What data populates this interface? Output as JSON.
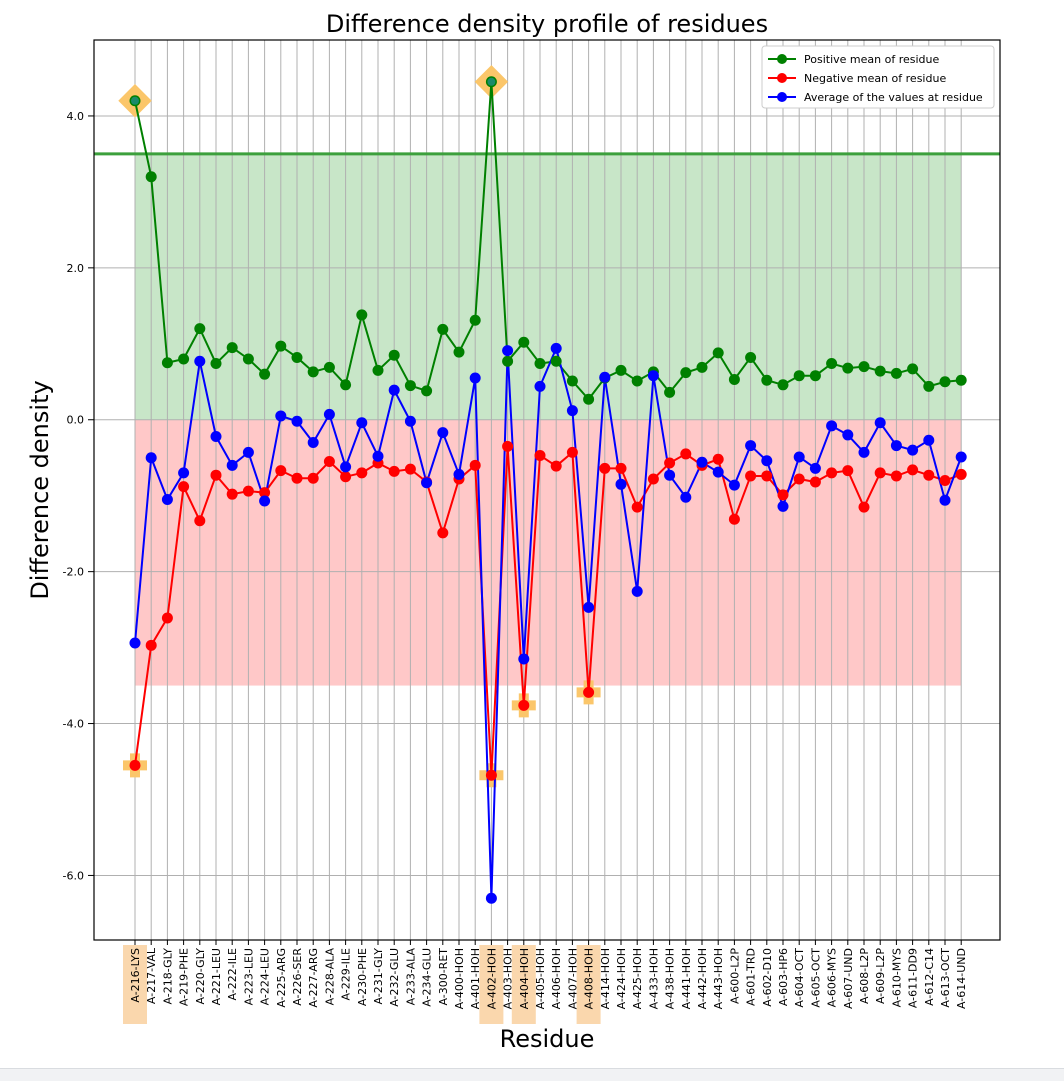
{
  "chart_data": {
    "type": "line",
    "title": "Difference density profile of residues",
    "xlabel": "Residue",
    "ylabel": "Difference density",
    "ylim": [
      -6.85,
      5.0
    ],
    "yticks": [
      -6.0,
      -4.0,
      -2.0,
      0.0,
      2.0,
      4.0
    ],
    "ytick_labels": [
      "-6.0",
      "-4.0",
      "-2.0",
      "0.0",
      "2.0",
      "4.0"
    ],
    "grid": true,
    "legend_position": "top-right",
    "threshold_line": 3.5,
    "positive_band": [
      0,
      3.5
    ],
    "negative_band": [
      -3.5,
      0
    ],
    "categories": [
      "A-216-LYS",
      "A-217-VAL",
      "A-218-GLY",
      "A-219-PHE",
      "A-220-GLY",
      "A-221-LEU",
      "A-222-ILE",
      "A-223-LEU",
      "A-224-LEU",
      "A-225-ARG",
      "A-226-SER",
      "A-227-ARG",
      "A-228-ALA",
      "A-229-ILE",
      "A-230-PHE",
      "A-231-GLY",
      "A-232-GLU",
      "A-233-ALA",
      "A-234-GLU",
      "A-300-RET",
      "A-400-HOH",
      "A-401-HOH",
      "A-402-HOH",
      "A-403-HOH",
      "A-404-HOH",
      "A-405-HOH",
      "A-406-HOH",
      "A-407-HOH",
      "A-408-HOH",
      "A-414-HOH",
      "A-424-HOH",
      "A-425-HOH",
      "A-433-HOH",
      "A-438-HOH",
      "A-441-HOH",
      "A-442-HOH",
      "A-443-HOH",
      "A-600-L2P",
      "A-601-TRD",
      "A-602-D10",
      "A-603-HP6",
      "A-604-OCT",
      "A-605-OCT",
      "A-606-MYS",
      "A-607-UND",
      "A-608-L2P",
      "A-609-L2P",
      "A-610-MYS",
      "A-611-DD9",
      "A-612-C14",
      "A-613-OCT",
      "A-614-UND"
    ],
    "highlighted_categories": [
      "A-216-LYS",
      "A-402-HOH",
      "A-404-HOH",
      "A-408-HOH"
    ],
    "series": [
      {
        "name": "Positive mean of residue",
        "color": "#008000",
        "values": [
          4.2,
          3.2,
          0.75,
          0.8,
          1.2,
          0.74,
          0.95,
          0.8,
          0.6,
          0.97,
          0.82,
          0.63,
          0.69,
          0.46,
          1.38,
          0.65,
          0.85,
          0.45,
          0.38,
          1.19,
          0.89,
          1.31,
          4.45,
          0.77,
          1.02,
          0.74,
          0.77,
          0.51,
          0.27,
          0.55,
          0.65,
          0.51,
          0.63,
          0.36,
          0.62,
          0.69,
          0.88,
          0.53,
          0.82,
          0.52,
          0.46,
          0.58,
          0.58,
          0.74,
          0.68,
          0.7,
          0.64,
          0.61,
          0.67,
          0.44,
          0.5,
          0.52
        ]
      },
      {
        "name": "Negative mean of residue",
        "color": "#ff0000",
        "values": [
          -4.55,
          -2.97,
          -2.61,
          -0.88,
          -1.33,
          -0.73,
          -0.98,
          -0.94,
          -0.96,
          -0.67,
          -0.77,
          -0.77,
          -0.55,
          -0.75,
          -0.7,
          -0.57,
          -0.68,
          -0.65,
          -0.82,
          -1.49,
          -0.78,
          -0.6,
          -4.68,
          -0.35,
          -3.76,
          -0.47,
          -0.61,
          -0.43,
          -3.59,
          -0.64,
          -0.64,
          -1.15,
          -0.78,
          -0.57,
          -0.45,
          -0.6,
          -0.52,
          -1.31,
          -0.74,
          -0.74,
          -0.99,
          -0.78,
          -0.82,
          -0.7,
          -0.67,
          -1.15,
          -0.7,
          -0.74,
          -0.66,
          -0.73,
          -0.8,
          -0.72
        ]
      },
      {
        "name": "Average of the values at residue",
        "color": "#0000ff",
        "values": [
          -2.94,
          -0.5,
          -1.05,
          -0.7,
          0.77,
          -0.22,
          -0.6,
          -0.43,
          -1.07,
          0.05,
          -0.02,
          -0.3,
          0.07,
          -0.62,
          -0.04,
          -0.48,
          0.39,
          -0.02,
          -0.83,
          -0.17,
          -0.72,
          0.55,
          -6.3,
          0.91,
          -3.15,
          0.44,
          0.94,
          0.12,
          -2.47,
          0.56,
          -0.85,
          -2.26,
          0.58,
          -0.73,
          -1.02,
          -0.56,
          -0.69,
          -0.86,
          -0.34,
          -0.54,
          -1.14,
          -0.49,
          -0.64,
          -0.08,
          -0.2,
          -0.43,
          -0.04,
          -0.34,
          -0.4,
          -0.27,
          -1.06,
          -0.49
        ]
      }
    ],
    "highlighted_points": [
      {
        "series": 0,
        "category": "A-216-LYS",
        "marker": "diamond"
      },
      {
        "series": 0,
        "category": "A-402-HOH",
        "marker": "diamond"
      },
      {
        "series": 1,
        "category": "A-216-LYS",
        "marker": "plus"
      },
      {
        "series": 1,
        "category": "A-402-HOH",
        "marker": "plus"
      },
      {
        "series": 1,
        "category": "A-404-HOH",
        "marker": "plus"
      },
      {
        "series": 1,
        "category": "A-408-HOH",
        "marker": "plus"
      }
    ]
  }
}
